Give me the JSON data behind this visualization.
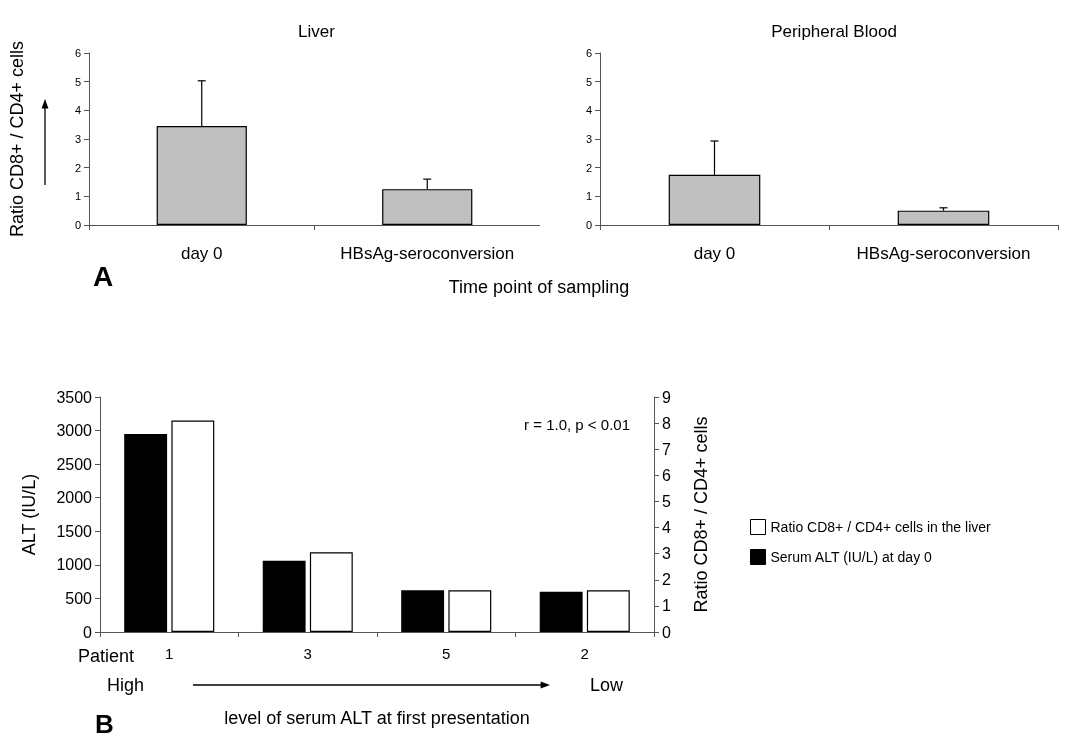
{
  "chart_data": [
    {
      "type": "bar",
      "title": "Liver",
      "ylabel": "Ratio CD8+ / CD4+ cells",
      "xlabel": "Time point of sampling",
      "annotations": [
        "A"
      ],
      "categories": [
        "day 0",
        "HBsAg-seroconversion"
      ],
      "values": [
        3.45,
        1.25
      ],
      "color": "#c0c0c0",
      "errors": [
        [
          3.45,
          5.03
        ],
        [
          1.25,
          1.6
        ]
      ],
      "ylim": [
        0,
        6
      ],
      "yticks": [
        0,
        1,
        2,
        3,
        4,
        5,
        6
      ],
      "grid": false,
      "legend": false
    },
    {
      "type": "bar",
      "title": "Peripheral Blood",
      "categories": [
        "day 0",
        "HBsAg-seroconversion"
      ],
      "values": [
        1.75,
        0.5
      ],
      "color": "#c0c0c0",
      "errors": [
        [
          1.75,
          2.93
        ],
        [
          0.5,
          0.6
        ]
      ],
      "ylim": [
        0,
        6
      ],
      "yticks": [
        0,
        1,
        2,
        3,
        4,
        5,
        6
      ],
      "grid": false,
      "legend": false
    },
    {
      "type": "bar",
      "xlabel": "level of serum ALT at first presentation",
      "ylabel": "ALT (IU/L)",
      "y2label": "Ratio CD8+ / CD4+ cells",
      "annotations": [
        "Patient",
        "High",
        "Low",
        "r = 1.0, p < 0.01",
        "B"
      ],
      "categories": [
        "1",
        "3",
        "5",
        "2"
      ],
      "series": [
        {
          "name": "Serum ALT (IU/L) at day 0",
          "color": "#000000",
          "values": [
            2950,
            1060,
            620,
            600
          ]
        },
        {
          "name": "Ratio CD8+ / CD4+ cells in the liver",
          "color": "#ffffff",
          "values": [
            8.1,
            3.05,
            1.6,
            1.6
          ],
          "axis": "y2"
        }
      ],
      "ylim": [
        0,
        3500
      ],
      "yticks": [
        0,
        500,
        1000,
        1500,
        2000,
        2500,
        3000,
        3500
      ],
      "y2lim": [
        0,
        9
      ],
      "y2ticks": [
        0,
        1,
        2,
        3,
        4,
        5,
        6,
        7,
        8,
        9
      ],
      "grid": false,
      "legend": "right"
    }
  ]
}
